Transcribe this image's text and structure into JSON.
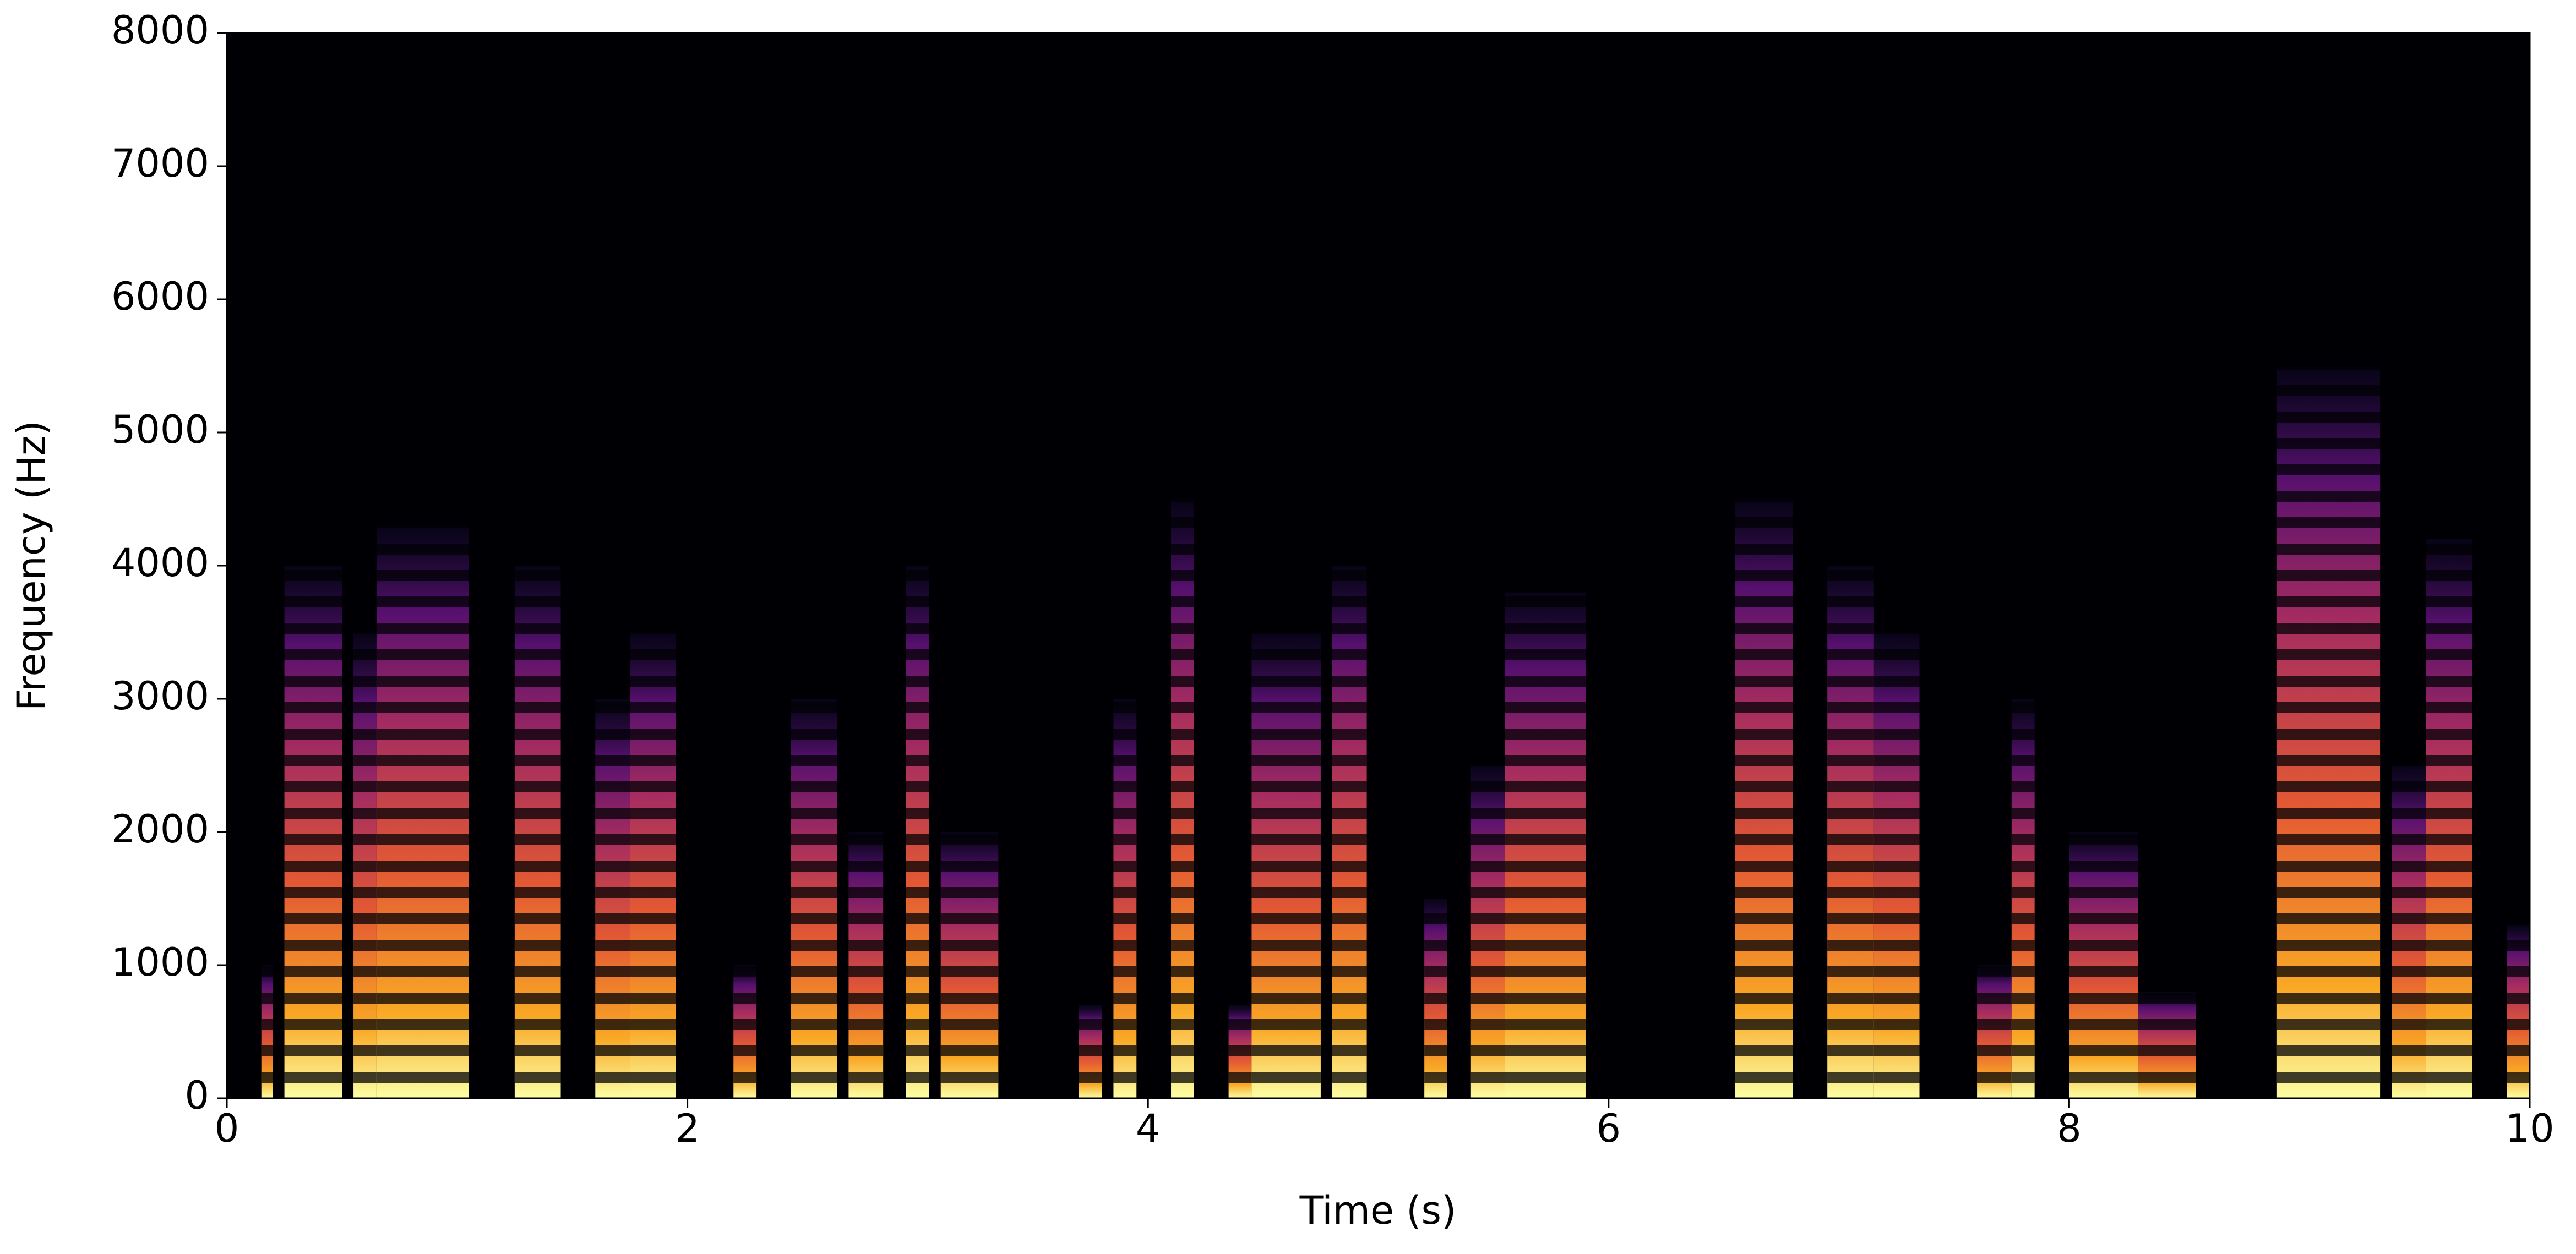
{
  "chart_data": {
    "type": "spectrogram",
    "x_label": "Time (s)",
    "y_label": "Frequency (Hz)",
    "xlim": [
      0,
      10
    ],
    "ylim": [
      0,
      8000
    ],
    "xticks": [
      0,
      2,
      4,
      6,
      8,
      10
    ],
    "yticks": [
      0,
      1000,
      2000,
      3000,
      4000,
      5000,
      6000,
      7000,
      8000
    ],
    "colormap": "inferno",
    "voiced_segments": [
      [
        0.15,
        0.2,
        1000
      ],
      [
        0.25,
        0.5,
        4000
      ],
      [
        0.55,
        0.65,
        3500
      ],
      [
        0.65,
        1.05,
        4300
      ],
      [
        1.25,
        1.45,
        4000
      ],
      [
        1.6,
        1.75,
        3000
      ],
      [
        1.75,
        1.95,
        3500
      ],
      [
        2.2,
        2.3,
        1000
      ],
      [
        2.45,
        2.65,
        3000
      ],
      [
        2.7,
        2.85,
        2000
      ],
      [
        2.95,
        3.05,
        4000
      ],
      [
        3.1,
        3.35,
        2000
      ],
      [
        3.7,
        3.8,
        700
      ],
      [
        3.85,
        3.95,
        3000
      ],
      [
        4.1,
        4.2,
        4500
      ],
      [
        4.35,
        4.45,
        700
      ],
      [
        4.45,
        4.75,
        3500
      ],
      [
        4.8,
        4.95,
        4000
      ],
      [
        5.2,
        5.3,
        1500
      ],
      [
        5.4,
        5.55,
        2500
      ],
      [
        5.55,
        5.9,
        3800
      ],
      [
        6.55,
        6.8,
        4500
      ],
      [
        6.95,
        7.15,
        4000
      ],
      [
        7.15,
        7.35,
        3500
      ],
      [
        7.6,
        7.75,
        1000
      ],
      [
        7.75,
        7.85,
        3000
      ],
      [
        8.0,
        8.3,
        2000
      ],
      [
        8.3,
        8.55,
        800
      ],
      [
        8.9,
        9.35,
        5500
      ],
      [
        9.4,
        9.55,
        2500
      ],
      [
        9.55,
        9.75,
        4200
      ],
      [
        9.9,
        10,
        1300
      ]
    ]
  }
}
